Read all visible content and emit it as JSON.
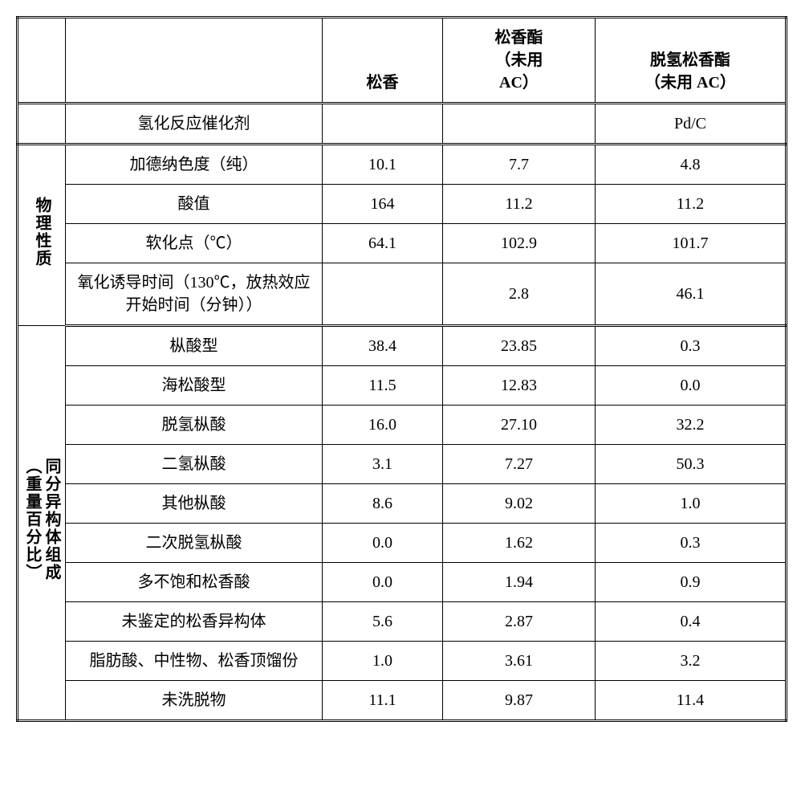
{
  "table": {
    "columns": {
      "c2": "松香",
      "c3_line1": "松香酯",
      "c3_line2": "（未用",
      "c3_line3": "AC）",
      "c4_line1": "脱氢松香酯",
      "c4_line2": "（未用 AC）"
    },
    "catalyst_row": {
      "label": "氢化反应催化剂",
      "c2": "",
      "c3": "",
      "c4": "Pd/C"
    },
    "section1": {
      "title": "物理性质",
      "rows": [
        {
          "label": "加德纳色度（纯）",
          "c2": "10.1",
          "c3": "7.7",
          "c4": "4.8"
        },
        {
          "label": "酸值",
          "c2": "164",
          "c3": "11.2",
          "c4": "11.2"
        },
        {
          "label": "软化点（℃）",
          "c2": "64.1",
          "c3": "102.9",
          "c4": "101.7"
        },
        {
          "label": "氧化诱导时间（130℃，放热效应开始时间（分钟））",
          "c2": "",
          "c3": "2.8",
          "c4": "46.1"
        }
      ]
    },
    "section2": {
      "title_line1": "同分异构体组成",
      "title_line2": "（重量百分比）",
      "rows": [
        {
          "label": "枞酸型",
          "c2": "38.4",
          "c3": "23.85",
          "c4": "0.3"
        },
        {
          "label": "海松酸型",
          "c2": "11.5",
          "c3": "12.83",
          "c4": "0.0"
        },
        {
          "label": "脱氢枞酸",
          "c2": "16.0",
          "c3": "27.10",
          "c4": "32.2"
        },
        {
          "label": "二氢枞酸",
          "c2": "3.1",
          "c3": "7.27",
          "c4": "50.3"
        },
        {
          "label": "其他枞酸",
          "c2": "8.6",
          "c3": "9.02",
          "c4": "1.0"
        },
        {
          "label": "二次脱氢枞酸",
          "c2": "0.0",
          "c3": "1.62",
          "c4": "0.3"
        },
        {
          "label": "多不饱和松香酸",
          "c2": "0.0",
          "c3": "1.94",
          "c4": "0.9"
        },
        {
          "label": "未鉴定的松香异构体",
          "c2": "5.6",
          "c3": "2.87",
          "c4": "0.4"
        },
        {
          "label": "脂肪酸、中性物、松香顶馏份",
          "c2": "1.0",
          "c3": "3.61",
          "c4": "3.2"
        },
        {
          "label": "未洗脱物",
          "c2": "11.1",
          "c3": "9.87",
          "c4": "11.4"
        }
      ]
    }
  }
}
